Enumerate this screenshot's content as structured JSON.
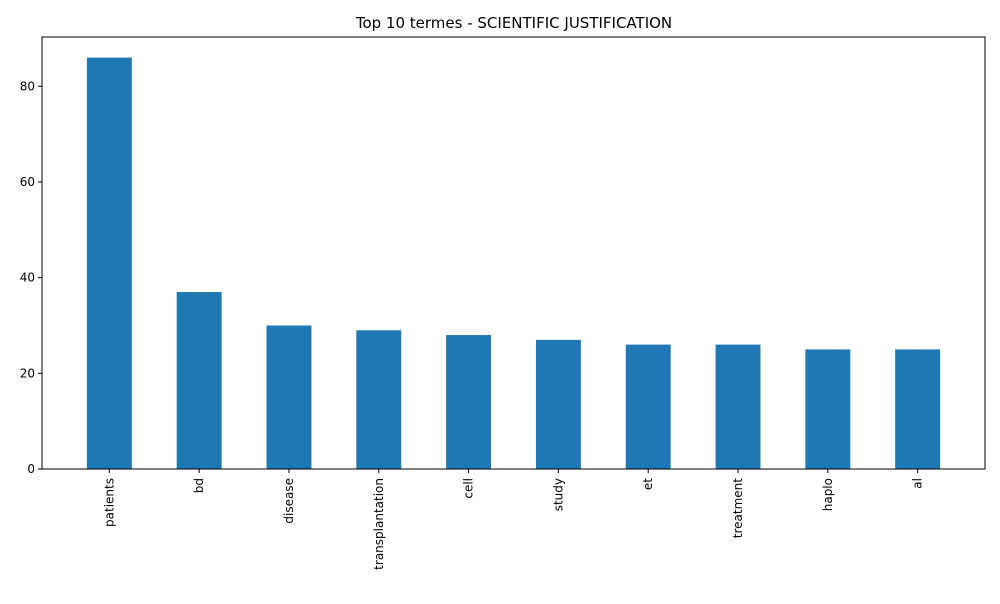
{
  "chart_data": {
    "type": "bar",
    "title": "Top 10 termes - SCIENTIFIC JUSTIFICATION",
    "xlabel": "",
    "ylabel": "",
    "categories": [
      "patients",
      "bd",
      "disease",
      "transplantation",
      "cell",
      "study",
      "et",
      "treatment",
      "haplo",
      "al"
    ],
    "values": [
      86,
      37,
      30,
      29,
      28,
      27,
      26,
      26,
      25,
      25
    ],
    "ylim": [
      0,
      90.3
    ],
    "yticks": [
      0,
      20,
      40,
      60,
      80
    ],
    "grid": false,
    "legend": "none",
    "bar_color": "#1f77b4",
    "x_tick_rotation": "vertical"
  }
}
